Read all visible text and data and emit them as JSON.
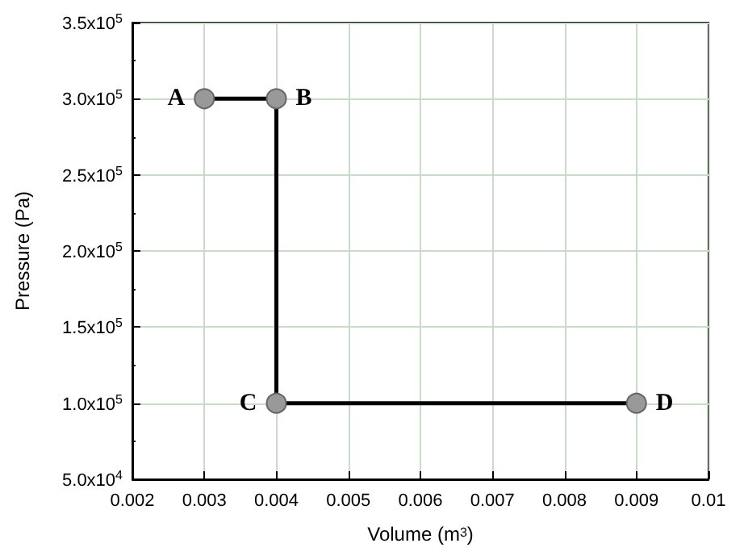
{
  "chart_data": {
    "type": "line",
    "xlabel": "Volume (m$^{3}$)",
    "ylabel": "Pressure (Pa)",
    "x": [
      0.003,
      0.004,
      0.004,
      0.009
    ],
    "series": [
      {
        "color": "#000000",
        "values": [
          300000,
          300000,
          100000,
          100000
        ]
      }
    ],
    "xlim": [
      0.002,
      0.01
    ],
    "xticks": [
      0.002,
      0.003,
      0.004,
      0.005,
      0.006,
      0.007,
      0.008,
      0.009,
      0.01
    ],
    "ylim": [
      50000,
      350000
    ],
    "yticks": [
      {
        "value": 50000,
        "label": "5.0x10$^{4}$"
      },
      {
        "value": 100000,
        "label": "1.0x10$^{5}$"
      },
      {
        "value": 150000,
        "label": "1.5x10$^{5}$"
      },
      {
        "value": 200000,
        "label": "2.0x10$^{5}$"
      },
      {
        "value": 250000,
        "label": "2.5x10$^{5}$"
      },
      {
        "value": 300000,
        "label": "3.0x10$^{5}$"
      },
      {
        "value": 350000,
        "label": "3.5x10$^{5}$"
      }
    ],
    "annotations": [
      {
        "text": "A",
        "x": 0.003,
        "y": 300000
      },
      {
        "text": "B",
        "x": 0.004,
        "y": 300000
      },
      {
        "text": "C",
        "x": 0.004,
        "y": 100000
      },
      {
        "text": "D",
        "x": 0.009,
        "y": 100000
      }
    ],
    "grid": true,
    "marker": "circle",
    "line_style": "solid"
  }
}
